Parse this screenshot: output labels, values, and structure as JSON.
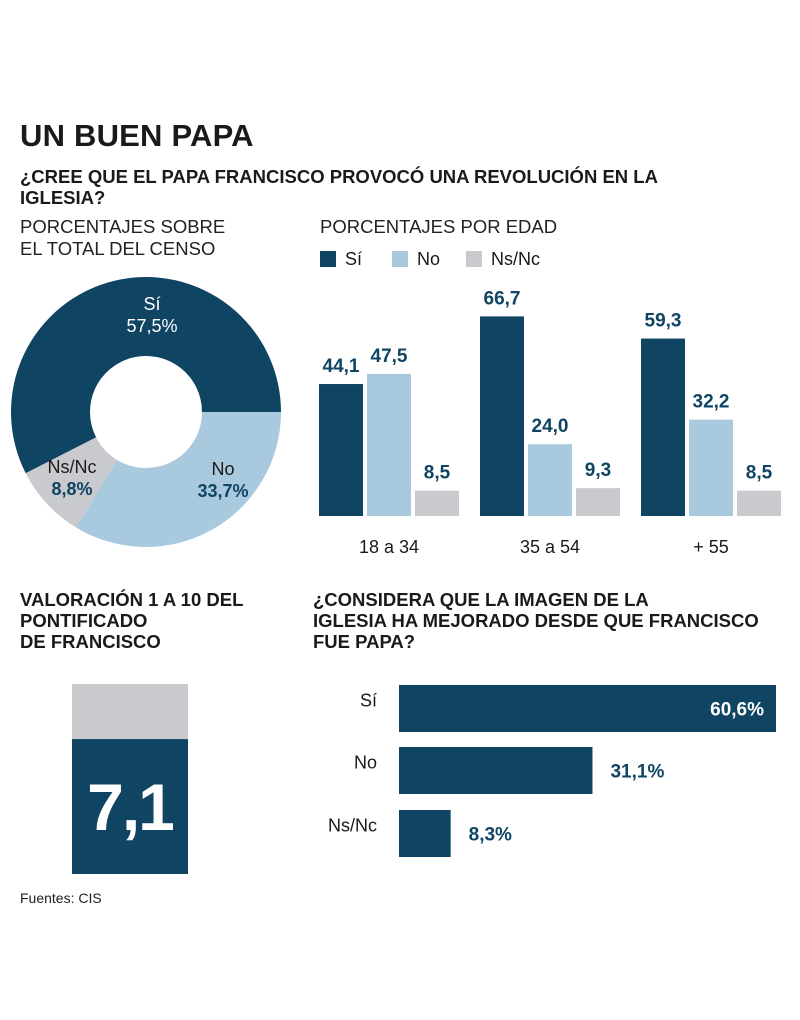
{
  "header": {
    "title": "UN BUEN PAPA",
    "question": "¿CREE QUE EL PAPA FRANCISCO PROVOCÓ UNA REVOLUCIÓN EN LA IGLESIA?"
  },
  "colors": {
    "si": "#0f4463",
    "no": "#a9c9de",
    "nsnc": "#c8cacd",
    "text_dark": "#0f4463"
  },
  "chart_data": [
    {
      "type": "pie",
      "subtitle_line1": "PORCENTAJES SOBRE",
      "subtitle_line2": "EL TOTAL DEL CENSO",
      "slices": [
        {
          "label": "Sí",
          "value": 57.5,
          "display": "57,5%"
        },
        {
          "label": "No",
          "value": 33.7,
          "display": "33,7%"
        },
        {
          "label": "Ns/Nc",
          "value": 8.8,
          "display": "8,8%"
        }
      ]
    },
    {
      "type": "bar",
      "subtitle": "PORCENTAJES POR EDAD",
      "legend": [
        "Sí",
        "No",
        "Ns/Nc"
      ],
      "categories": [
        "18 a 34",
        "35 a 54",
        "+ 55"
      ],
      "ylim": [
        0,
        100
      ],
      "series": [
        {
          "name": "Sí",
          "values": [
            44.1,
            66.7,
            59.3
          ],
          "labels": [
            "44,1",
            "66,7",
            "59,3"
          ]
        },
        {
          "name": "No",
          "values": [
            47.5,
            24.0,
            32.2
          ],
          "labels": [
            "47,5",
            "24,0",
            "32,2"
          ]
        },
        {
          "name": "Ns/Nc",
          "values": [
            8.5,
            9.3,
            8.5
          ],
          "labels": [
            "8,5",
            "9,3",
            "8,5"
          ]
        }
      ]
    },
    {
      "type": "bar",
      "orientation": "vertical-gauge",
      "title_line1": "VALORACIÓN 1 A 10 DEL",
      "title_line2": "PONTIFICADO",
      "title_line3": "DE FRANCISCO",
      "value": 7.1,
      "max": 10,
      "display": "7,1"
    },
    {
      "type": "bar",
      "orientation": "horizontal",
      "title_line1": "¿CONSIDERA QUE LA IMAGEN DE LA",
      "title_line2": "IGLESIA HA MEJORADO DESDE QUE FRANCISCO",
      "title_line3": "FUE PAPA?",
      "xlim": [
        0,
        60.6
      ],
      "categories": [
        "Sí",
        "No",
        "Ns/Nc"
      ],
      "values": [
        60.6,
        31.1,
        8.3
      ],
      "labels": [
        "60,6%",
        "31,1%",
        "8,3%"
      ]
    }
  ],
  "footer": {
    "source": "Fuentes: CIS"
  }
}
